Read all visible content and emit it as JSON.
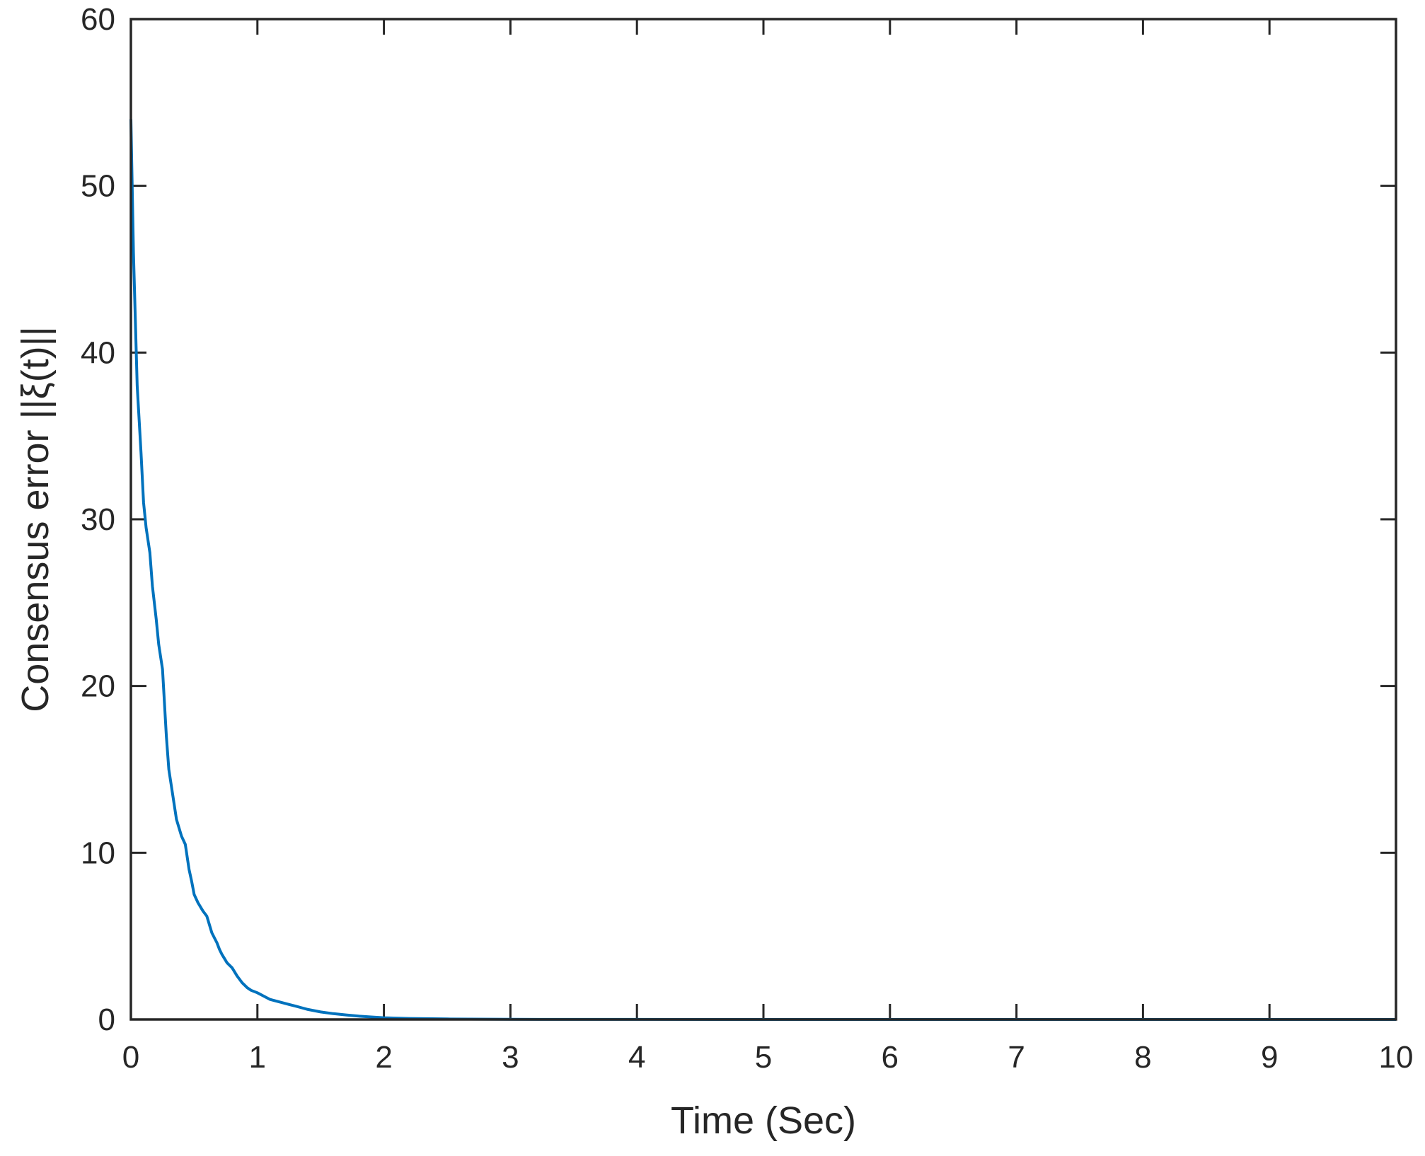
{
  "chart_data": {
    "type": "line",
    "xlabel": "Time (Sec)",
    "ylabel": "Consensus error ||ξ(t)||",
    "xlim": [
      0,
      10
    ],
    "ylim": [
      0,
      60
    ],
    "x_ticks": [
      "0",
      "1",
      "2",
      "3",
      "4",
      "5",
      "6",
      "7",
      "8",
      "9",
      "10"
    ],
    "y_ticks": [
      "0",
      "10",
      "20",
      "30",
      "40",
      "50",
      "60"
    ],
    "grid": false,
    "line_color": "#0072BD",
    "series": [
      {
        "x": [
          0,
          0.02,
          0.05,
          0.08,
          0.1,
          0.12,
          0.15,
          0.17,
          0.2,
          0.22,
          0.25,
          0.28,
          0.3,
          0.33,
          0.36,
          0.4,
          0.43,
          0.46,
          0.48,
          0.5,
          0.53,
          0.57,
          0.6,
          0.64,
          0.68,
          0.7,
          0.72,
          0.76,
          0.8,
          0.84,
          0.88,
          0.92,
          0.95,
          1.0,
          1.05,
          1.1,
          1.15,
          1.2,
          1.25,
          1.3,
          1.35,
          1.4,
          1.5,
          1.6,
          1.7,
          1.8,
          1.9,
          2.0,
          2.2,
          2.5,
          3.0,
          4.0,
          5.0,
          6.0,
          7.0,
          8.0,
          9.0,
          10.0
        ],
        "y": [
          54,
          46,
          38,
          34,
          31,
          29.5,
          28,
          26,
          24,
          22.5,
          21,
          17,
          15,
          13.5,
          12,
          11,
          10.5,
          9,
          8.3,
          7.5,
          7,
          6.5,
          6.2,
          5.2,
          4.6,
          4.2,
          3.9,
          3.4,
          3.1,
          2.6,
          2.2,
          1.9,
          1.75,
          1.6,
          1.4,
          1.2,
          1.1,
          1.0,
          0.9,
          0.8,
          0.7,
          0.6,
          0.45,
          0.35,
          0.27,
          0.2,
          0.15,
          0.1,
          0.06,
          0.03,
          0.01,
          0.003,
          0.001,
          0.0005,
          0.0002,
          0.0001,
          0.0,
          0.0
        ]
      }
    ]
  }
}
